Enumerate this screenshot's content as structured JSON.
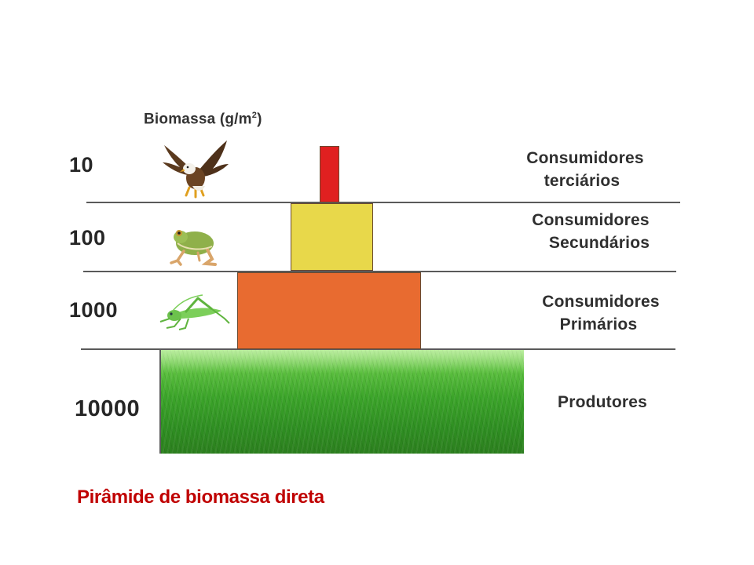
{
  "header": {
    "prefix": "Biomassa (g/m",
    "superscript": "2",
    "suffix": ")"
  },
  "levels": [
    {
      "value": "10",
      "label_line1": "Consumidores",
      "label_line2": "terciários",
      "color": "#e02020",
      "icon": "eagle-icon"
    },
    {
      "value": "100",
      "label_line1": "Consumidores",
      "label_line2": "Secundários",
      "color": "#e8d84a",
      "icon": "frog-icon"
    },
    {
      "value": "1000",
      "label_line1": "Consumidores",
      "label_line2": "Primários",
      "color": "#e86b30",
      "icon": "grasshopper-icon"
    },
    {
      "value": "10000",
      "label_line1": "Produtores",
      "label_line2": "",
      "color": "#3ca52a",
      "icon": "grass-image"
    }
  ],
  "caption": "Pirâmide de biomassa direta"
}
